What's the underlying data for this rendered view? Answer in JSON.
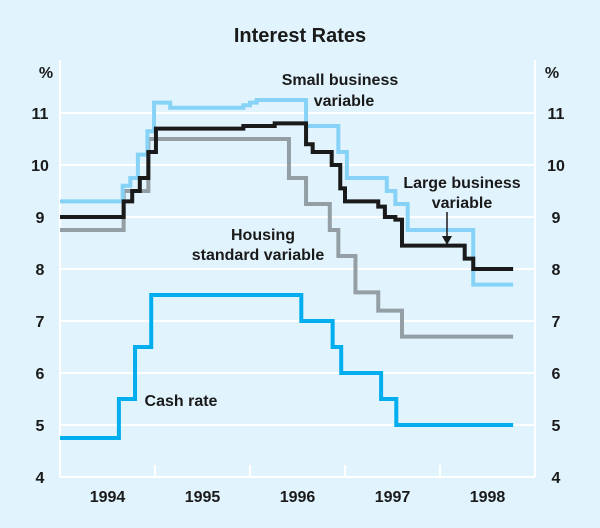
{
  "chart_data": {
    "type": "line",
    "step": true,
    "title": "Interest Rates",
    "ylabel_left": "%",
    "ylabel_right": "%",
    "xlim": [
      1994.0,
      1999.0
    ],
    "ylim": [
      4,
      11.5
    ],
    "yticks": [
      4,
      5,
      6,
      7,
      8,
      9,
      10,
      11
    ],
    "ytick_labels": [
      "4",
      "5",
      "6",
      "7",
      "8",
      "9",
      "10",
      "11"
    ],
    "xtick_labels": [
      {
        "label": "1994",
        "year": 1994
      },
      {
        "label": "1995",
        "year": 1995
      },
      {
        "label": "1996",
        "year": 1996
      },
      {
        "label": "1997",
        "year": 1997
      },
      {
        "label": "1998",
        "year": 1998
      }
    ],
    "grid": true,
    "series": [
      {
        "name": "Housing standard variable",
        "color": "#939ea5",
        "steps": [
          [
            1994.0,
            8.75
          ],
          [
            1994.67,
            9.5
          ],
          [
            1994.93,
            10.5
          ],
          [
            1996.41,
            9.75
          ],
          [
            1996.59,
            9.25
          ],
          [
            1996.84,
            8.75
          ],
          [
            1996.93,
            8.25
          ],
          [
            1997.11,
            7.55
          ],
          [
            1997.35,
            7.2
          ],
          [
            1997.6,
            6.7
          ]
        ],
        "end": 1998.77
      },
      {
        "name": "Small business variable",
        "color": "#86d3f7",
        "steps": [
          [
            1994.0,
            9.3
          ],
          [
            1994.66,
            9.6
          ],
          [
            1994.74,
            9.75
          ],
          [
            1994.82,
            10.2
          ],
          [
            1994.92,
            10.65
          ],
          [
            1994.99,
            11.2
          ],
          [
            1995.16,
            11.1
          ],
          [
            1995.93,
            11.15
          ],
          [
            1996.0,
            11.2
          ],
          [
            1996.07,
            11.25
          ],
          [
            1996.59,
            10.75
          ],
          [
            1996.93,
            10.25
          ],
          [
            1997.02,
            9.75
          ],
          [
            1997.44,
            9.5
          ],
          [
            1997.53,
            9.25
          ],
          [
            1997.66,
            8.75
          ],
          [
            1998.35,
            7.7
          ]
        ],
        "end": 1998.77
      },
      {
        "name": "Large business variable",
        "color": "#1a1a1a",
        "steps": [
          [
            1994.0,
            9.0
          ],
          [
            1994.67,
            9.3
          ],
          [
            1994.76,
            9.5
          ],
          [
            1994.84,
            9.75
          ],
          [
            1994.93,
            10.25
          ],
          [
            1995.01,
            10.7
          ],
          [
            1995.93,
            10.75
          ],
          [
            1996.26,
            10.8
          ],
          [
            1996.59,
            10.4
          ],
          [
            1996.66,
            10.25
          ],
          [
            1996.86,
            10.0
          ],
          [
            1996.95,
            9.55
          ],
          [
            1997.0,
            9.3
          ],
          [
            1997.35,
            9.2
          ],
          [
            1997.42,
            9.0
          ],
          [
            1997.53,
            8.95
          ],
          [
            1997.6,
            8.45
          ],
          [
            1998.26,
            8.2
          ],
          [
            1998.35,
            8.0
          ]
        ],
        "end": 1998.77
      },
      {
        "name": "Cash rate",
        "color": "#00aeef",
        "steps": [
          [
            1994.0,
            4.75
          ],
          [
            1994.62,
            5.5
          ],
          [
            1994.79,
            6.5
          ],
          [
            1994.96,
            7.5
          ],
          [
            1996.54,
            7.0
          ],
          [
            1996.87,
            6.5
          ],
          [
            1996.96,
            6.0
          ],
          [
            1997.38,
            5.5
          ],
          [
            1997.54,
            5.0
          ]
        ],
        "end": 1998.77
      }
    ],
    "annotations": {
      "small_business": [
        "Small business",
        "variable"
      ],
      "large_business": [
        "Large business",
        "variable"
      ],
      "housing": [
        "Housing",
        "standard variable"
      ],
      "cash": [
        "Cash rate"
      ]
    }
  }
}
